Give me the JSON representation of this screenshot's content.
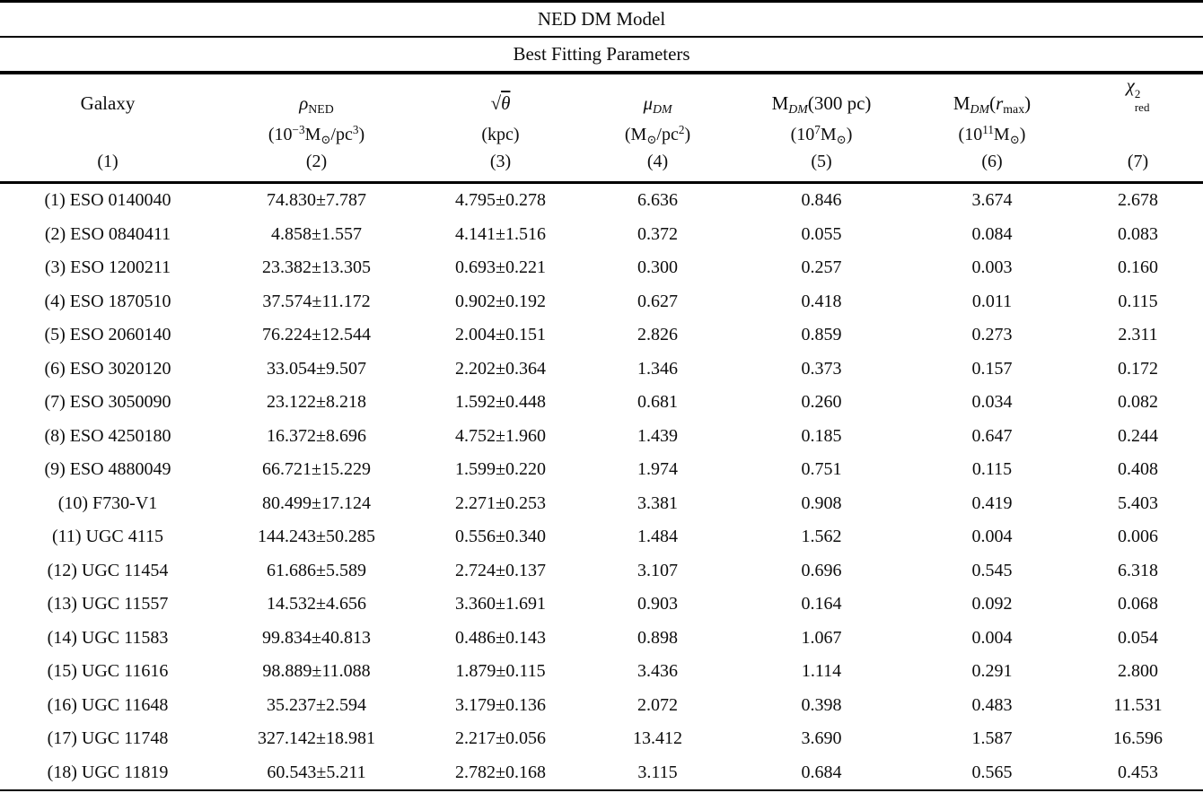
{
  "page": {
    "background": "#ffffff",
    "text_color": "#000000",
    "rule_color": "#000000"
  },
  "table": {
    "title": "NED DM Model",
    "subtitle": "Best Fitting Parameters",
    "columns": [
      {
        "key": "galaxy",
        "header": [
          {
            "t": "Galaxy"
          }
        ],
        "unit": [],
        "number": "(1)"
      },
      {
        "key": "rho_ned",
        "header": [
          {
            "t": "ρ",
            "i": true
          },
          {
            "t": "NED",
            "v": "sub"
          }
        ],
        "unit": [
          {
            "t": "(10"
          },
          {
            "t": "−3",
            "v": "sup"
          },
          {
            "t": "M"
          },
          {
            "t": "⊙",
            "v": "sub"
          },
          {
            "t": "/pc"
          },
          {
            "t": "3",
            "v": "sup"
          },
          {
            "t": ")"
          }
        ],
        "number": "(2)"
      },
      {
        "key": "sqrt_theta",
        "header": [
          {
            "t": "√"
          },
          {
            "t": "θ",
            "i": true,
            "over": true
          }
        ],
        "unit": [
          {
            "t": "(kpc)"
          }
        ],
        "number": "(3)"
      },
      {
        "key": "mu_dm",
        "header": [
          {
            "t": "μ",
            "i": true
          },
          {
            "t": "DM",
            "v": "sub",
            "i": true
          }
        ],
        "unit": [
          {
            "t": "(M"
          },
          {
            "t": "⊙",
            "v": "sub"
          },
          {
            "t": "/pc"
          },
          {
            "t": "2",
            "v": "sup"
          },
          {
            "t": ")"
          }
        ],
        "number": "(4)"
      },
      {
        "key": "m_dm_300pc",
        "header": [
          {
            "t": "M"
          },
          {
            "t": "DM",
            "v": "sub",
            "i": true
          },
          {
            "t": "(300 pc)"
          }
        ],
        "unit": [
          {
            "t": "(10"
          },
          {
            "t": "7",
            "v": "sup"
          },
          {
            "t": "M"
          },
          {
            "t": "⊙",
            "v": "sub"
          },
          {
            "t": ")"
          }
        ],
        "number": "(5)"
      },
      {
        "key": "m_dm_rmax",
        "header": [
          {
            "t": "M"
          },
          {
            "t": "DM",
            "v": "sub",
            "i": true
          },
          {
            "t": "("
          },
          {
            "t": "r",
            "i": true
          },
          {
            "t": "max",
            "v": "sub"
          },
          {
            "t": ")"
          }
        ],
        "unit": [
          {
            "t": "(10"
          },
          {
            "t": "11",
            "v": "sup"
          },
          {
            "t": "M"
          },
          {
            "t": "⊙",
            "v": "sub"
          },
          {
            "t": ")"
          }
        ],
        "number": "(6)"
      },
      {
        "key": "chi2_red",
        "header": [
          {
            "t": "χ",
            "i": true
          },
          {
            "v": "supsub",
            "sup": "2",
            "sub": "red"
          }
        ],
        "unit": [],
        "number": "(7)"
      }
    ],
    "rows": [
      [
        "(1) ESO 0140040",
        "74.830±7.787",
        "4.795±0.278",
        "6.636",
        "0.846",
        "3.674",
        "2.678"
      ],
      [
        "(2) ESO 0840411",
        "4.858±1.557",
        "4.141±1.516",
        "0.372",
        "0.055",
        "0.084",
        "0.083"
      ],
      [
        "(3) ESO 1200211",
        "23.382±13.305",
        "0.693±0.221",
        "0.300",
        "0.257",
        "0.003",
        "0.160"
      ],
      [
        "(4) ESO 1870510",
        "37.574±11.172",
        "0.902±0.192",
        "0.627",
        "0.418",
        "0.011",
        "0.115"
      ],
      [
        "(5) ESO 2060140",
        "76.224±12.544",
        "2.004±0.151",
        "2.826",
        "0.859",
        "0.273",
        "2.311"
      ],
      [
        "(6) ESO 3020120",
        "33.054±9.507",
        "2.202±0.364",
        "1.346",
        "0.373",
        "0.157",
        "0.172"
      ],
      [
        "(7) ESO 3050090",
        "23.122±8.218",
        "1.592±0.448",
        "0.681",
        "0.260",
        "0.034",
        "0.082"
      ],
      [
        "(8) ESO 4250180",
        "16.372±8.696",
        "4.752±1.960",
        "1.439",
        "0.185",
        "0.647",
        "0.244"
      ],
      [
        "(9) ESO 4880049",
        "66.721±15.229",
        "1.599±0.220",
        "1.974",
        "0.751",
        "0.115",
        "0.408"
      ],
      [
        "(10) F730-V1",
        "80.499±17.124",
        "2.271±0.253",
        "3.381",
        "0.908",
        "0.419",
        "5.403"
      ],
      [
        "(11) UGC 4115",
        "144.243±50.285",
        "0.556±0.340",
        "1.484",
        "1.562",
        "0.004",
        "0.006"
      ],
      [
        "(12) UGC 11454",
        "61.686±5.589",
        "2.724±0.137",
        "3.107",
        "0.696",
        "0.545",
        "6.318"
      ],
      [
        "(13) UGC 11557",
        "14.532±4.656",
        "3.360±1.691",
        "0.903",
        "0.164",
        "0.092",
        "0.068"
      ],
      [
        "(14) UGC 11583",
        "99.834±40.813",
        "0.486±0.143",
        "0.898",
        "1.067",
        "0.004",
        "0.054"
      ],
      [
        "(15) UGC 11616",
        "98.889±11.088",
        "1.879±0.115",
        "3.436",
        "1.114",
        "0.291",
        "2.800"
      ],
      [
        "(16) UGC 11648",
        "35.237±2.594",
        "3.179±0.136",
        "2.072",
        "0.398",
        "0.483",
        "11.531"
      ],
      [
        "(17) UGC 11748",
        "327.142±18.981",
        "2.217±0.056",
        "13.412",
        "3.690",
        "1.587",
        "16.596"
      ],
      [
        "(18) UGC 11819",
        "60.543±5.211",
        "2.782±0.168",
        "3.115",
        "0.684",
        "0.565",
        "0.453"
      ]
    ]
  }
}
